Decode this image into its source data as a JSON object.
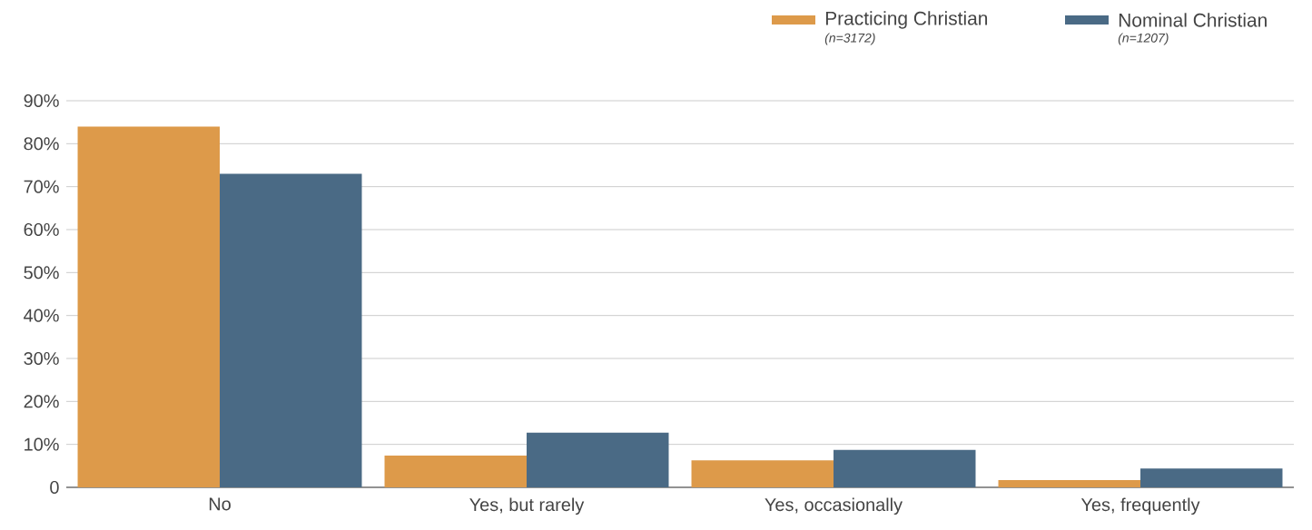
{
  "chart_data": {
    "type": "bar",
    "categories": [
      "No",
      "Yes, but rarely",
      "Yes, occasionally",
      "Yes, frequently"
    ],
    "series": [
      {
        "name": "Practicing Christian",
        "color": "#dd9a4a",
        "values": [
          84,
          7.4,
          6.3,
          1.7
        ]
      },
      {
        "name": "Nominal Christian",
        "color": "#4a6a85",
        "values": [
          73,
          12.7,
          8.7,
          4.4
        ]
      }
    ],
    "annotations": [
      "(n=3172)",
      "(n=1207)"
    ],
    "ylim": [
      0,
      90
    ],
    "yticks": [
      {
        "value": 0,
        "label": "0"
      },
      {
        "value": 10,
        "label": "10%"
      },
      {
        "value": 20,
        "label": "20%"
      },
      {
        "value": 30,
        "label": "30%"
      },
      {
        "value": 40,
        "label": "40%"
      },
      {
        "value": 50,
        "label": "50%"
      },
      {
        "value": 60,
        "label": "60%"
      },
      {
        "value": 70,
        "label": "70%"
      },
      {
        "value": 80,
        "label": "80%"
      },
      {
        "value": 90,
        "label": "90%"
      }
    ],
    "grid": "y",
    "legend": "top right"
  }
}
